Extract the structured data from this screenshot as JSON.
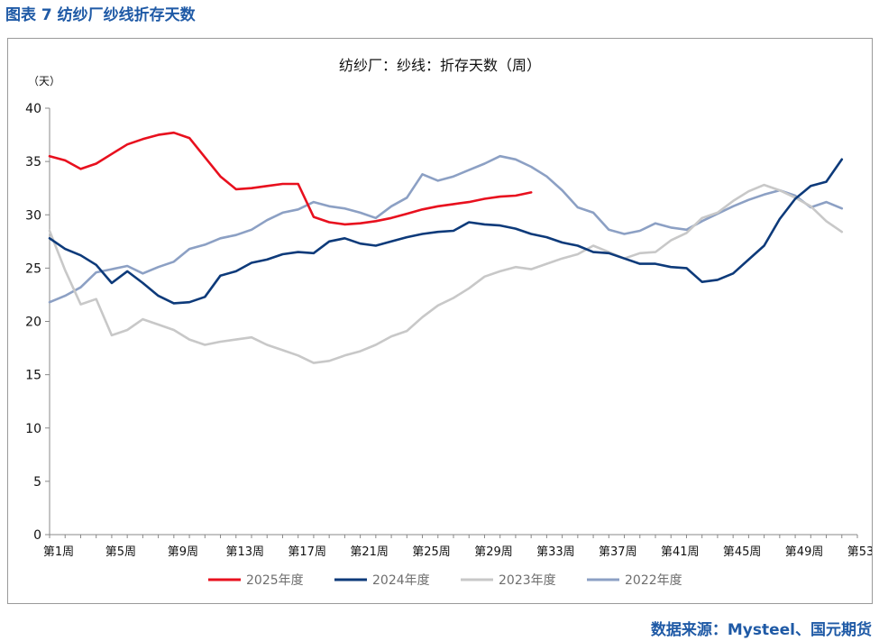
{
  "caption": "图表 7  纺纱厂纱线折存天数",
  "source": "数据来源：Mysteel、国元期货",
  "chart_data": {
    "type": "line",
    "title": "纺纱厂：纱线：折存天数（周）",
    "ylabel": "（天）",
    "ylim": [
      0,
      40
    ],
    "yticks": [
      0,
      5,
      10,
      15,
      20,
      25,
      30,
      35,
      40
    ],
    "x_range": [
      1,
      53
    ],
    "x_tick_labels": [
      "第1周",
      "第5周",
      "第9周",
      "第13周",
      "第17周",
      "第21周",
      "第25周",
      "第29周",
      "第33周",
      "第37周",
      "第41周",
      "第45周",
      "第49周",
      "第53周"
    ],
    "x_tick_weeks": [
      1,
      5,
      9,
      13,
      17,
      21,
      25,
      29,
      33,
      37,
      41,
      45,
      49,
      53
    ],
    "legend_position": "bottom",
    "grid": false,
    "series": [
      {
        "name": "2025年度",
        "color": "#e8101e",
        "start_week": 1,
        "values": [
          35.5,
          35.1,
          34.3,
          34.8,
          35.7,
          36.6,
          37.1,
          37.5,
          37.7,
          37.2,
          35.4,
          33.6,
          32.4,
          32.5,
          32.7,
          32.9,
          32.9,
          29.8,
          29.3,
          29.1,
          29.2,
          29.4,
          29.7,
          30.1,
          30.5,
          30.8,
          31.0,
          31.2,
          31.5,
          31.7,
          31.8,
          32.1
        ]
      },
      {
        "name": "2024年度",
        "color": "#0d3a7a",
        "start_week": 1,
        "values": [
          27.8,
          26.8,
          26.2,
          25.3,
          23.6,
          24.7,
          23.6,
          22.4,
          21.7,
          21.8,
          22.3,
          24.3,
          24.7,
          25.5,
          25.8,
          26.3,
          26.5,
          26.4,
          27.5,
          27.8,
          27.3,
          27.1,
          27.5,
          27.9,
          28.2,
          28.4,
          28.5,
          29.3,
          29.1,
          29.0,
          28.7,
          28.2,
          27.9,
          27.4,
          27.1,
          26.5,
          26.4,
          25.9,
          25.4,
          25.4,
          25.1,
          25.0,
          23.7,
          23.9,
          24.5,
          25.8,
          27.1,
          29.6,
          31.5,
          32.7,
          33.1,
          35.2
        ]
      },
      {
        "name": "2023年度",
        "color": "#c8c8c8",
        "start_week": 1,
        "values": [
          28.5,
          24.8,
          21.6,
          22.1,
          18.7,
          19.2,
          20.2,
          19.7,
          19.2,
          18.3,
          17.8,
          18.1,
          18.3,
          18.5,
          17.8,
          17.3,
          16.8,
          16.1,
          16.3,
          16.8,
          17.2,
          17.8,
          18.6,
          19.1,
          20.4,
          21.5,
          22.2,
          23.1,
          24.2,
          24.7,
          25.1,
          24.9,
          25.4,
          25.9,
          26.3,
          27.1,
          26.5,
          25.9,
          26.4,
          26.5,
          27.6,
          28.3,
          29.7,
          30.2,
          31.3,
          32.2,
          32.8,
          32.3,
          31.6,
          30.8,
          29.4,
          28.4
        ]
      },
      {
        "name": "2022年度",
        "color": "#8ca0c4",
        "start_week": 1,
        "values": [
          21.8,
          22.4,
          23.2,
          24.6,
          24.9,
          25.2,
          24.5,
          25.1,
          25.6,
          26.8,
          27.2,
          27.8,
          28.1,
          28.6,
          29.5,
          30.2,
          30.5,
          31.2,
          30.8,
          30.6,
          30.2,
          29.7,
          30.8,
          31.6,
          33.8,
          33.2,
          33.6,
          34.2,
          34.8,
          35.5,
          35.2,
          34.5,
          33.6,
          32.3,
          30.7,
          30.2,
          28.6,
          28.2,
          28.5,
          29.2,
          28.8,
          28.6,
          29.4,
          30.1,
          30.8,
          31.4,
          31.9,
          32.3,
          31.8,
          30.7,
          31.2,
          30.6
        ]
      }
    ]
  }
}
